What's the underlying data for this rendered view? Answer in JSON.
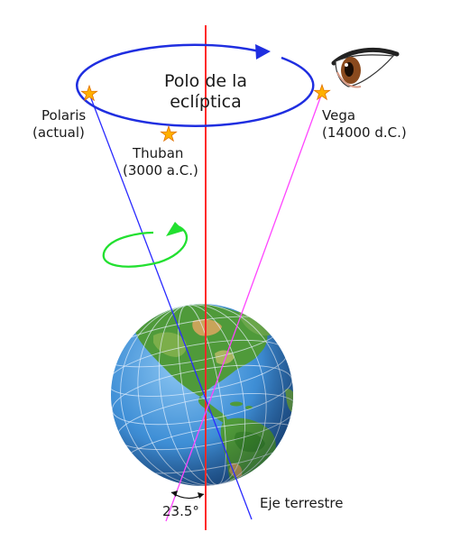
{
  "labels": {
    "pole_line1": "Polo de la",
    "pole_line2": "eclíptica",
    "polaris_name": "Polaris",
    "polaris_note": "(actual)",
    "thuban_name": "Thuban",
    "thuban_note": "(3000 a.C.)",
    "vega_name": "Vega",
    "vega_note": "(14000 d.C.)",
    "axis_label": "Eje terrestre",
    "angle_label": "23.5°"
  },
  "colors": {
    "ecliptic_axis": "#ff2a2a",
    "precession_circle": "#1f2ee0",
    "earth_axis_now": "#2a2aff",
    "earth_axis_future": "#ff44ff",
    "rotation_arrow": "#22e030",
    "star_fill": "#ffb000",
    "ocean": "#3f8fd6",
    "land": "#4f9a3a",
    "desert": "#c9a45a"
  },
  "icons": {
    "star": "star-icon",
    "eye": "eye-icon",
    "earth": "earth-globe"
  }
}
